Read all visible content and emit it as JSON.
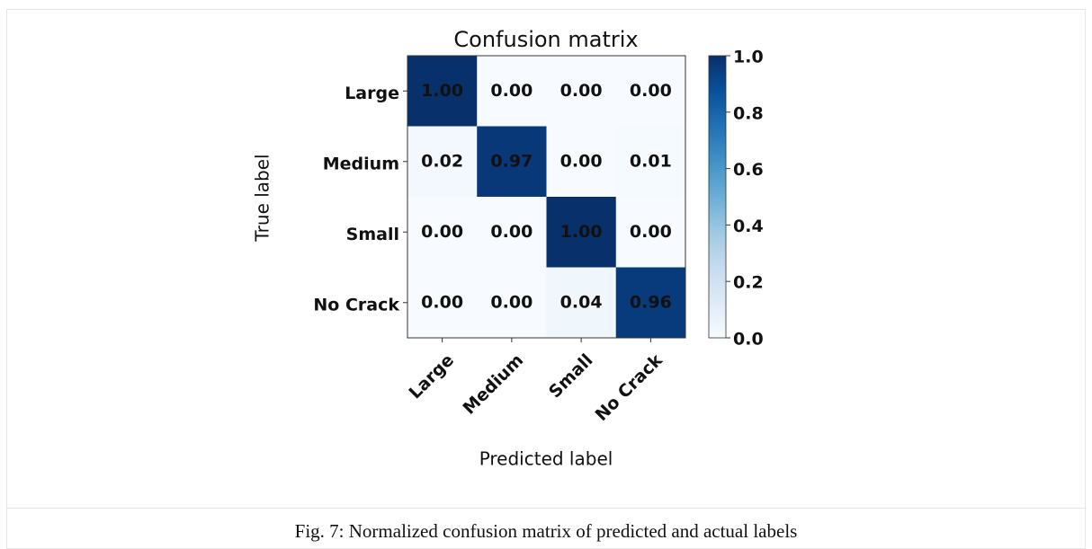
{
  "chart_data": {
    "type": "heatmap",
    "title": "Confusion matrix",
    "x_label": "Predicted label",
    "y_label": "True label",
    "x_categories": [
      "Large",
      "Medium",
      "Small",
      "No Crack"
    ],
    "y_categories": [
      "Large",
      "Medium",
      "Small",
      "No Crack"
    ],
    "values": [
      [
        1,
        0,
        0,
        0
      ],
      [
        0.02,
        0.97,
        0,
        0.01
      ],
      [
        0,
        0,
        1,
        0
      ],
      [
        0,
        0,
        0.04,
        0.96
      ]
    ],
    "value_labels": [
      [
        "1.00",
        "0.00",
        "0.00",
        "0.00"
      ],
      [
        "0.02",
        "0.97",
        "0.00",
        "0.01"
      ],
      [
        "0.00",
        "0.00",
        "1.00",
        "0.00"
      ],
      [
        "0.00",
        "0.00",
        "0.04",
        "0.96"
      ]
    ],
    "colormap": "Blues",
    "colorbar_lim": [
      0,
      1
    ],
    "colorbar_ticks": [
      {
        "value": 0,
        "label": "0.0"
      },
      0.2,
      0.4,
      0.6,
      0.8,
      {
        "value": 1,
        "label": "1.0"
      }
    ]
  },
  "caption": "Fig. 7: Normalized confusion matrix of predicted and actual labels"
}
